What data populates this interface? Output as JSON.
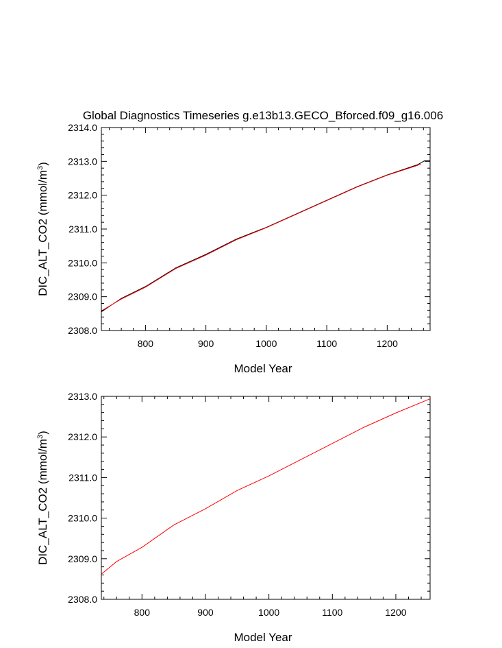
{
  "chart_data": [
    {
      "type": "line",
      "title": "Global Diagnostics Timeseries g.e13b13.GECO_Bforced.f09_g16.006",
      "xlabel": "Model Year",
      "ylabel": "DIC_ALT_CO2 (mmol/m",
      "ylabel_sup": "3",
      "ylabel_close": ")",
      "xlim": [
        727,
        1271
      ],
      "ylim": [
        2308.0,
        2314.0
      ],
      "xticks": [
        800,
        900,
        1000,
        1100,
        1200
      ],
      "xtick_labels": [
        "800",
        "900",
        "1000",
        "1100",
        "1200"
      ],
      "yticks": [
        2308.0,
        2309.0,
        2310.0,
        2311.0,
        2312.0,
        2313.0,
        2314.0
      ],
      "ytick_labels": [
        "2308.0",
        "2309.0",
        "2310.0",
        "2311.0",
        "2312.0",
        "2313.0",
        "2314.0"
      ],
      "grid": false,
      "series": [
        {
          "color": "#000000",
          "x": [
            727,
            760,
            800,
            850,
            900,
            950,
            1000,
            1050,
            1100,
            1150,
            1200,
            1250,
            1258,
            1262,
            1271
          ],
          "y": [
            2308.55,
            2308.95,
            2309.3,
            2309.85,
            2310.25,
            2310.7,
            2311.05,
            2311.45,
            2311.85,
            2312.25,
            2312.6,
            2312.9,
            2312.98,
            2313.02,
            2313.02
          ]
        },
        {
          "color": "#ff0000",
          "x": [
            727,
            760,
            800,
            850,
            900,
            950,
            1000,
            1050,
            1100,
            1150,
            1200,
            1250,
            1256
          ],
          "y": [
            2308.58,
            2308.93,
            2309.28,
            2309.83,
            2310.23,
            2310.68,
            2311.04,
            2311.44,
            2311.84,
            2312.24,
            2312.59,
            2312.88,
            2312.93
          ]
        }
      ]
    },
    {
      "type": "line",
      "xlabel": "Model Year",
      "ylabel": "DIC_ALT_CO2 (mmol/m",
      "ylabel_sup": "3",
      "ylabel_close": ")",
      "xlim": [
        736,
        1254
      ],
      "ylim": [
        2308.0,
        2313.0
      ],
      "xticks": [
        800,
        900,
        1000,
        1100,
        1200
      ],
      "xtick_labels": [
        "800",
        "900",
        "1000",
        "1100",
        "1200"
      ],
      "yticks": [
        2308.0,
        2309.0,
        2310.0,
        2311.0,
        2312.0,
        2313.0
      ],
      "ytick_labels": [
        "2308.0",
        "2309.0",
        "2310.0",
        "2311.0",
        "2312.0",
        "2313.0"
      ],
      "grid": false,
      "series": [
        {
          "color": "#ff0000",
          "x": [
            736,
            760,
            800,
            850,
            900,
            950,
            1000,
            1050,
            1100,
            1150,
            1200,
            1254
          ],
          "y": [
            2308.62,
            2308.93,
            2309.28,
            2309.83,
            2310.23,
            2310.68,
            2311.04,
            2311.44,
            2311.84,
            2312.24,
            2312.59,
            2312.94
          ]
        }
      ]
    }
  ]
}
